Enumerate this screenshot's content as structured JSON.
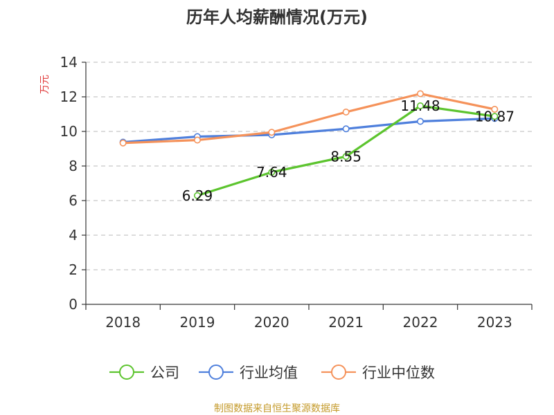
{
  "chart_data": {
    "type": "line",
    "title": "历年人均薪酬情况(万元)",
    "ylabel": "万元",
    "xlabel": "",
    "categories": [
      "2018",
      "2019",
      "2020",
      "2021",
      "2022",
      "2023"
    ],
    "ylim": [
      0,
      14
    ],
    "yticks": [
      0,
      2,
      4,
      6,
      8,
      10,
      12,
      14
    ],
    "grid": true,
    "legend_position": "bottom",
    "series": [
      {
        "name": "公司",
        "color": "#5cc42e",
        "values": [
          null,
          6.29,
          7.64,
          8.55,
          11.48,
          10.87
        ],
        "labels": [
          null,
          "6.29",
          "7.64",
          "8.55",
          "11.48",
          "10.87"
        ]
      },
      {
        "name": "行业均值",
        "color": "#4e7fdc",
        "values": [
          9.38,
          9.7,
          9.8,
          10.15,
          10.58,
          10.75
        ]
      },
      {
        "name": "行业中位数",
        "color": "#f5925a",
        "values": [
          9.33,
          9.5,
          9.95,
          11.12,
          12.18,
          11.28
        ]
      }
    ]
  },
  "source": "制图数据来自恒生聚源数据库"
}
